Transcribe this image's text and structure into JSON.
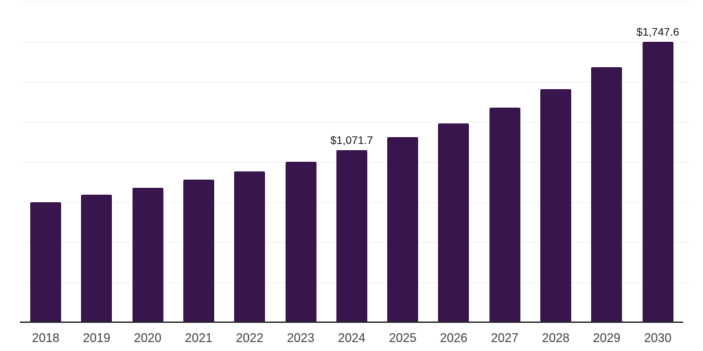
{
  "page": {
    "background_color": "#ffffff"
  },
  "chart_data": {
    "type": "bar",
    "title": "",
    "xlabel": "",
    "ylabel": "",
    "categories": [
      "2018",
      "2019",
      "2020",
      "2021",
      "2022",
      "2023",
      "2024",
      "2025",
      "2026",
      "2027",
      "2028",
      "2029",
      "2030"
    ],
    "values": [
      749,
      796,
      839,
      887,
      941,
      998,
      1071.7,
      1152,
      1238,
      1337,
      1454,
      1591,
      1747.6
    ],
    "value_labels": [
      "",
      "",
      "",
      "",
      "",
      "",
      "$1,071.7",
      "",
      "",
      "",
      "",
      "",
      "$1,747.6"
    ],
    "ylim": [
      0,
      2000
    ],
    "gridlines": {
      "visible": true,
      "step": 250
    },
    "legend": {
      "visible": false
    },
    "colors": {
      "bar": "#38154d",
      "gridline": "#f1f1f3",
      "axis_line": "#2b2b2b",
      "value_label_text": "#131313",
      "tick_label_text": "#414141",
      "background": "#ffffff"
    }
  }
}
